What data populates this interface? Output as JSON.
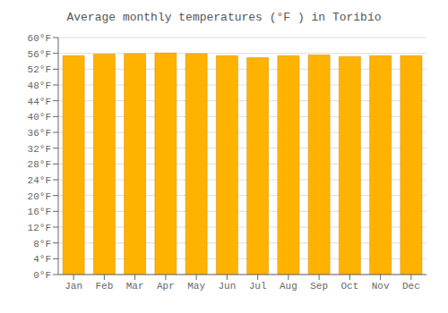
{
  "chart_data": {
    "type": "bar",
    "title": "Average monthly temperatures (°F ) in Toribío",
    "categories": [
      "Jan",
      "Feb",
      "Mar",
      "Apr",
      "May",
      "Jun",
      "Jul",
      "Aug",
      "Sep",
      "Oct",
      "Nov",
      "Dec"
    ],
    "values": [
      55.4,
      55.8,
      55.9,
      56.1,
      55.9,
      55.4,
      54.9,
      55.4,
      55.6,
      55.2,
      55.4,
      55.4
    ],
    "color": "#FFB300",
    "ylim": [
      0,
      60
    ],
    "yticks": [
      {
        "value": 0,
        "label": "0°F"
      },
      {
        "value": 4,
        "label": "4°F"
      },
      {
        "value": 8,
        "label": "8°F"
      },
      {
        "value": 12,
        "label": "12°F"
      },
      {
        "value": 16,
        "label": "16°F"
      },
      {
        "value": 20,
        "label": "20°F"
      },
      {
        "value": 24,
        "label": "24°F"
      },
      {
        "value": 28,
        "label": "28°F"
      },
      {
        "value": 32,
        "label": "32°F"
      },
      {
        "value": 36,
        "label": "36°F"
      },
      {
        "value": 40,
        "label": "40°F"
      },
      {
        "value": 44,
        "label": "44°F"
      },
      {
        "value": 48,
        "label": "48°F"
      },
      {
        "value": 52,
        "label": "52°F"
      },
      {
        "value": 56,
        "label": "56°F"
      },
      {
        "value": 60,
        "label": "60°F"
      }
    ],
    "grid": true
  }
}
